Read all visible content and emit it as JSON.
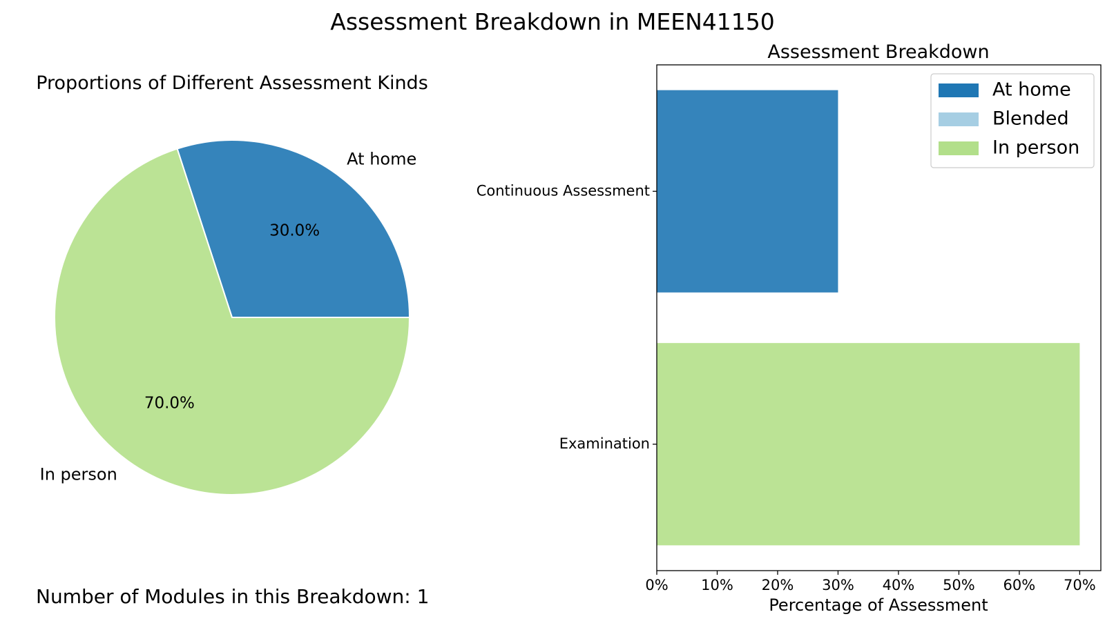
{
  "figure_title": "Assessment Breakdown in MEEN41150",
  "footer_text": "Number of Modules in this Breakdown: 1",
  "chart_data": [
    {
      "type": "pie",
      "title": "Proportions of Different Assessment Kinds",
      "slices": [
        {
          "label": "At home",
          "value": 30.0,
          "pct_label": "30.0%",
          "color": "#3584bb"
        },
        {
          "label": "In person",
          "value": 70.0,
          "pct_label": "70.0%",
          "color": "#bbe395"
        }
      ]
    },
    {
      "type": "bar",
      "orientation": "horizontal",
      "stacked": true,
      "title": "Assessment Breakdown",
      "xlabel": "Percentage of Assessment",
      "ylabel": "",
      "categories": [
        "Continuous Assessment",
        "Examination"
      ],
      "series": [
        {
          "name": "At home",
          "color": "#3584bb",
          "values": [
            30,
            0
          ]
        },
        {
          "name": "Blended",
          "color": "#a6cee3",
          "values": [
            0,
            0
          ]
        },
        {
          "name": "In person",
          "color": "#bbe395",
          "values": [
            0,
            70
          ]
        }
      ],
      "xlim": [
        0,
        73.5
      ],
      "xticks": [
        0,
        10,
        20,
        30,
        40,
        50,
        60,
        70
      ],
      "xtick_labels": [
        "0%",
        "10%",
        "20%",
        "30%",
        "40%",
        "50%",
        "60%",
        "70%"
      ],
      "legend_position": "top-right",
      "legend_colors": [
        "#1f77b4",
        "#a6cee3",
        "#b2df8a"
      ],
      "grid": false
    }
  ]
}
